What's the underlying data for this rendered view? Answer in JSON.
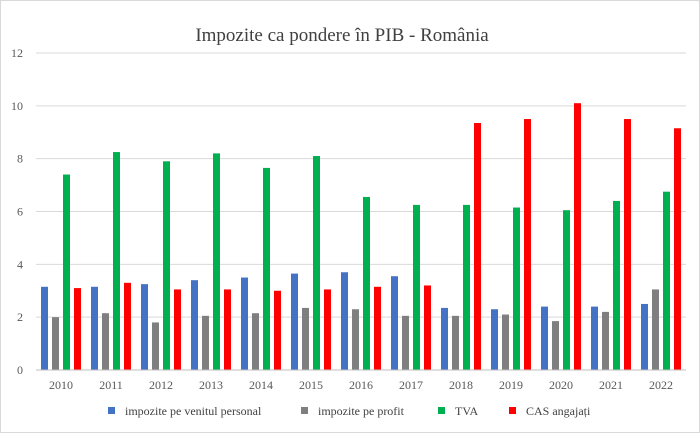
{
  "chart_data": {
    "type": "bar",
    "title": "Impozite ca pondere în PIB - România",
    "xlabel": "",
    "ylabel": "",
    "ylim": [
      0,
      12
    ],
    "yticks": [
      0,
      2,
      4,
      6,
      8,
      10,
      12
    ],
    "grid": true,
    "legend_position": "bottom",
    "categories": [
      "2010",
      "2011",
      "2012",
      "2013",
      "2014",
      "2015",
      "2016",
      "2017",
      "2018",
      "2019",
      "2020",
      "2021",
      "2022"
    ],
    "series": [
      {
        "name": "impozite pe venitul personal",
        "color": "#4472c4",
        "values": [
          3.15,
          3.15,
          3.25,
          3.4,
          3.5,
          3.65,
          3.7,
          3.55,
          2.35,
          2.3,
          2.4,
          2.4,
          2.5
        ]
      },
      {
        "name": "impozite pe profit",
        "color": "#7f7f7f",
        "values": [
          2.0,
          2.15,
          1.8,
          2.05,
          2.15,
          2.35,
          2.3,
          2.05,
          2.05,
          2.1,
          1.85,
          2.2,
          3.05
        ]
      },
      {
        "name": "TVA",
        "color": "#00b050",
        "values": [
          7.4,
          8.25,
          7.9,
          8.2,
          7.65,
          8.1,
          6.55,
          6.25,
          6.25,
          6.15,
          6.05,
          6.4,
          6.75
        ]
      },
      {
        "name": "CAS angajați",
        "color": "#ff0000",
        "values": [
          3.1,
          3.3,
          3.05,
          3.05,
          3.0,
          3.05,
          3.15,
          3.2,
          9.35,
          9.5,
          10.1,
          9.5,
          9.15
        ]
      }
    ]
  }
}
